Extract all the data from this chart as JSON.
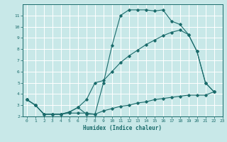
{
  "xlabel": "Humidex (Indice chaleur)",
  "bg_color": "#c8e8e8",
  "line_color": "#1a6b6b",
  "grid_color": "#b0d0d0",
  "xlim": [
    -0.5,
    23
  ],
  "ylim": [
    2,
    12
  ],
  "yticks": [
    2,
    3,
    4,
    5,
    6,
    7,
    8,
    9,
    10,
    11
  ],
  "xticks": [
    0,
    1,
    2,
    3,
    4,
    5,
    6,
    7,
    8,
    9,
    10,
    11,
    12,
    13,
    14,
    15,
    16,
    17,
    18,
    19,
    20,
    21,
    22,
    23
  ],
  "line1_x": [
    0,
    1,
    2,
    3,
    4,
    5,
    6,
    7,
    8,
    9,
    10,
    11,
    12,
    13,
    14,
    15,
    16,
    17,
    18,
    19,
    20,
    21,
    22
  ],
  "line1_y": [
    3.5,
    3.0,
    2.2,
    2.2,
    2.2,
    2.4,
    2.8,
    2.2,
    2.2,
    5.0,
    8.3,
    11.0,
    11.5,
    11.5,
    11.5,
    11.4,
    11.5,
    10.5,
    10.2,
    9.3,
    7.8,
    5.0,
    4.2
  ],
  "line2_x": [
    0,
    1,
    2,
    3,
    4,
    5,
    6,
    7,
    8,
    9,
    10,
    11,
    12,
    13,
    14,
    15,
    16,
    17,
    18,
    19,
    20,
    21,
    22
  ],
  "line2_y": [
    3.5,
    3.0,
    2.2,
    2.2,
    2.2,
    2.4,
    2.8,
    3.5,
    5.0,
    5.2,
    6.0,
    6.8,
    7.4,
    7.9,
    8.4,
    8.8,
    9.2,
    9.5,
    9.7,
    9.3,
    7.8,
    5.0,
    4.2
  ],
  "line3_x": [
    0,
    1,
    2,
    3,
    4,
    5,
    6,
    7,
    8,
    9,
    10,
    11,
    12,
    13,
    14,
    15,
    16,
    17,
    18,
    19,
    20,
    21,
    22
  ],
  "line3_y": [
    3.5,
    3.0,
    2.2,
    2.2,
    2.2,
    2.3,
    2.3,
    2.3,
    2.2,
    2.5,
    2.7,
    2.9,
    3.0,
    3.2,
    3.3,
    3.5,
    3.6,
    3.7,
    3.8,
    3.9,
    3.9,
    3.9,
    4.2
  ]
}
